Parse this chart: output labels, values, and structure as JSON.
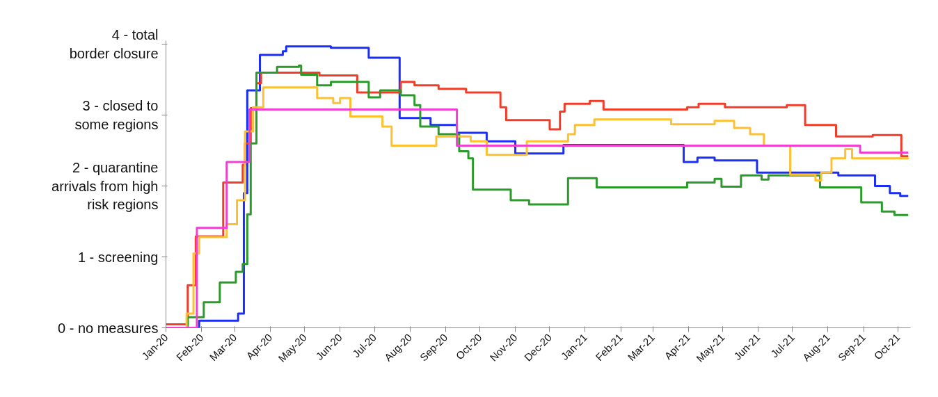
{
  "chart_data": {
    "type": "step",
    "xlim": [
      "2020-01-01",
      "2021-10-12"
    ],
    "xticks": [
      {
        "value": "2020-01-01",
        "label": "Jan-20"
      },
      {
        "value": "2020-02-01",
        "label": "Feb-20"
      },
      {
        "value": "2020-03-01",
        "label": "Mar-20"
      },
      {
        "value": "2020-04-01",
        "label": "Apr-20"
      },
      {
        "value": "2020-05-01",
        "label": "May-20"
      },
      {
        "value": "2020-06-01",
        "label": "Jun-20"
      },
      {
        "value": "2020-07-01",
        "label": "Jul-20"
      },
      {
        "value": "2020-08-01",
        "label": "Aug-20"
      },
      {
        "value": "2020-09-01",
        "label": "Sep-20"
      },
      {
        "value": "2020-10-01",
        "label": "Oct-20"
      },
      {
        "value": "2020-11-01",
        "label": "Nov-20"
      },
      {
        "value": "2020-12-01",
        "label": "Dec-20"
      },
      {
        "value": "2021-01-01",
        "label": "Jan-21"
      },
      {
        "value": "2021-02-01",
        "label": "Feb-21"
      },
      {
        "value": "2021-03-01",
        "label": "Mar-21"
      },
      {
        "value": "2021-04-01",
        "label": "Apr-21"
      },
      {
        "value": "2021-05-01",
        "label": "May-21"
      },
      {
        "value": "2021-06-01",
        "label": "Jun-21"
      },
      {
        "value": "2021-07-01",
        "label": "Jul-21"
      },
      {
        "value": "2021-08-01",
        "label": "Aug-21"
      },
      {
        "value": "2021-09-01",
        "label": "Sep-21"
      },
      {
        "value": "2021-10-01",
        "label": "Oct-21"
      }
    ],
    "ylim": [
      0,
      4.05
    ],
    "yticks": [
      {
        "value": 0,
        "label": "0 - no measures"
      },
      {
        "value": 1,
        "label": "1 - screening"
      },
      {
        "value": 2,
        "label": "2 - quarantine\narrivals from high\nrisk regions"
      },
      {
        "value": 3,
        "label": "3 - closed to\nsome regions"
      },
      {
        "value": 4,
        "label": "4 - total\nborder closure"
      }
    ],
    "grid": false,
    "marker": "none",
    "line_style": "solid",
    "series": [
      {
        "color": "#1a2ef5",
        "x": [
          "2020-01-01",
          "2020-01-30",
          "2020-03-04",
          "2020-03-09",
          "2020-03-12",
          "2020-03-23",
          "2020-04-12",
          "2020-04-15",
          "2020-05-24",
          "2020-06-26",
          "2020-07-23",
          "2020-08-19",
          "2020-09-11",
          "2020-10-07",
          "2020-11-01",
          "2020-12-13",
          "2021-03-28",
          "2021-04-09",
          "2021-04-24",
          "2021-05-31",
          "2021-08-10",
          "2021-09-11",
          "2021-09-24",
          "2021-10-03",
          "2021-10-10"
        ],
        "values": [
          0,
          0.1,
          0.2,
          1.9,
          3.35,
          3.85,
          3.9,
          3.97,
          3.95,
          3.81,
          2.96,
          2.86,
          2.75,
          2.63,
          2.46,
          2.58,
          2.34,
          2.4,
          2.36,
          2.19,
          2.15,
          2.0,
          1.9,
          1.86,
          1.86
        ]
      },
      {
        "color": "#f03c28",
        "x": [
          "2020-01-01",
          "2020-01-20",
          "2020-01-27",
          "2020-02-20",
          "2020-03-08",
          "2020-03-10",
          "2020-03-15",
          "2020-03-20",
          "2020-03-24",
          "2020-05-14",
          "2020-06-16",
          "2020-07-24",
          "2020-08-05",
          "2020-08-26",
          "2020-09-19",
          "2020-10-19",
          "2020-10-24",
          "2020-12-01",
          "2020-12-10",
          "2020-12-14",
          "2021-01-05",
          "2021-01-17",
          "2021-03-31",
          "2021-04-10",
          "2021-05-03",
          "2021-06-26",
          "2021-07-12",
          "2021-08-08",
          "2021-09-09",
          "2021-10-04",
          "2021-10-10"
        ],
        "values": [
          0.05,
          0.6,
          1.29,
          2.05,
          2.3,
          2.6,
          3.1,
          3.45,
          3.6,
          3.56,
          3.32,
          3.47,
          3.42,
          3.37,
          3.32,
          3.11,
          2.93,
          2.8,
          3.05,
          3.16,
          3.2,
          3.08,
          3.11,
          3.16,
          3.11,
          3.14,
          2.86,
          2.7,
          2.72,
          2.42,
          2.42
        ]
      },
      {
        "color": "#2a9a2a",
        "x": [
          "2020-01-01",
          "2020-01-20",
          "2020-02-03",
          "2020-02-17",
          "2020-03-02",
          "2020-03-08",
          "2020-03-12",
          "2020-03-15",
          "2020-03-20",
          "2020-04-07",
          "2020-04-26",
          "2020-04-28",
          "2020-05-12",
          "2020-05-24",
          "2020-06-26",
          "2020-07-06",
          "2020-07-24",
          "2020-08-05",
          "2020-08-10",
          "2020-08-26",
          "2020-09-13",
          "2020-09-21",
          "2020-09-25",
          "2020-10-28",
          "2020-11-13",
          "2020-12-17",
          "2021-01-11",
          "2021-03-31",
          "2021-04-24",
          "2021-04-30",
          "2021-05-17",
          "2021-06-04",
          "2021-06-10",
          "2021-07-25",
          "2021-08-30",
          "2021-09-17",
          "2021-09-28",
          "2021-10-10"
        ],
        "values": [
          0,
          0.15,
          0.36,
          0.64,
          0.79,
          0.9,
          1.6,
          2.6,
          3.6,
          3.68,
          3.7,
          3.57,
          3.42,
          3.47,
          3.25,
          3.35,
          3.28,
          3.14,
          2.84,
          2.73,
          2.49,
          2.39,
          1.95,
          1.8,
          1.74,
          2.11,
          1.98,
          2.05,
          2.1,
          1.99,
          2.15,
          2.09,
          2.15,
          1.98,
          1.77,
          1.64,
          1.59,
          1.59
        ]
      },
      {
        "color": "#fcc030",
        "x": [
          "2020-01-01",
          "2020-01-19",
          "2020-01-25",
          "2020-01-30",
          "2020-02-23",
          "2020-03-03",
          "2020-03-10",
          "2020-03-17",
          "2020-03-26",
          "2020-05-12",
          "2020-05-26",
          "2020-06-01",
          "2020-06-10",
          "2020-07-08",
          "2020-07-16",
          "2020-08-24",
          "2020-09-23",
          "2020-10-07",
          "2020-11-11",
          "2020-12-17",
          "2020-12-23",
          "2021-01-09",
          "2021-03-17",
          "2021-04-24",
          "2021-05-11",
          "2021-05-25",
          "2021-06-06",
          "2021-06-29",
          "2021-07-21",
          "2021-07-26",
          "2021-08-04",
          "2021-08-16",
          "2021-08-22",
          "2021-10-10"
        ],
        "values": [
          0,
          0.2,
          1.05,
          1.28,
          1.46,
          1.8,
          2.77,
          3.11,
          3.39,
          3.24,
          3.17,
          3.24,
          2.98,
          2.84,
          2.57,
          2.7,
          2.63,
          2.44,
          2.63,
          2.73,
          2.86,
          2.94,
          2.87,
          2.92,
          2.82,
          2.73,
          2.57,
          2.16,
          2.08,
          2.19,
          2.39,
          2.52,
          2.39,
          2.38
        ]
      },
      {
        "color": "#f040d0",
        "x": [
          "2020-01-01",
          "2020-01-28",
          "2020-02-23",
          "2020-03-14",
          "2020-09-11",
          "2021-08-29",
          "2021-10-10"
        ],
        "values": [
          0,
          1.41,
          2.34,
          3.08,
          2.57,
          2.47,
          2.47
        ]
      }
    ]
  }
}
